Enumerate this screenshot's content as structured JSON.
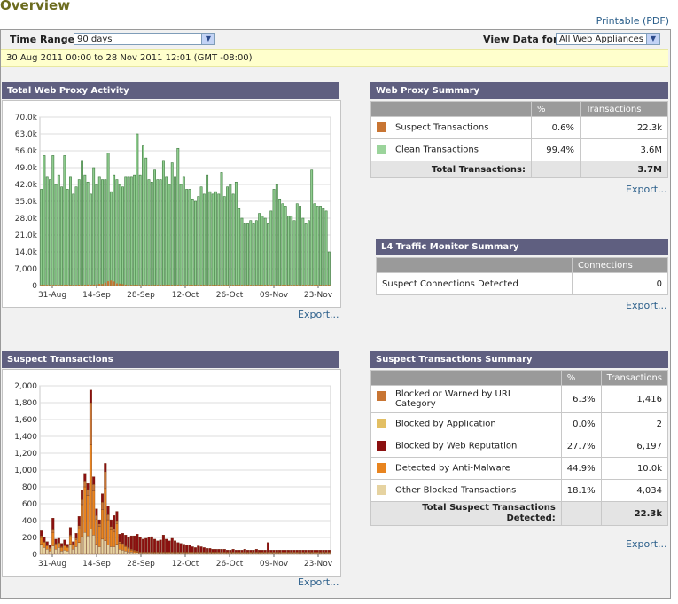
{
  "page": {
    "title": "Overview",
    "printable": "Printable (PDF)",
    "time_range_label": "Time Range:",
    "time_range_value": "90 days",
    "view_data_label": "View Data for:",
    "view_data_value": "All Web Appliances",
    "date_range": "30 Aug 2011 00:00 to 28 Nov 2011 12:01 (GMT -08:00)"
  },
  "panels": {
    "proxy_activity": {
      "title": "Total Web Proxy Activity",
      "export": "Export..."
    },
    "suspect": {
      "title": "Suspect Transactions",
      "export": "Export..."
    },
    "proxy_summary": {
      "title": "Web Proxy Summary",
      "col_pct": "%",
      "col_tx": "Transactions",
      "rows": [
        {
          "label": "Suspect Transactions",
          "pct": "0.6%",
          "tx": "22.3k",
          "color": "#c87533"
        },
        {
          "label": "Clean Transactions",
          "pct": "99.4%",
          "tx": "3.6M",
          "color": "#9bd49b"
        }
      ],
      "total_label": "Total Transactions:",
      "total_value": "3.7M",
      "export": "Export..."
    },
    "l4": {
      "title": "L4 Traffic Monitor Summary",
      "col": "Connections",
      "row_label": "Suspect Connections Detected",
      "row_value": "0",
      "export": "Export..."
    },
    "suspect_summary": {
      "title": "Suspect Transactions Summary",
      "col_pct": "%",
      "col_tx": "Transactions",
      "rows": [
        {
          "label": "Blocked or Warned by URL Category",
          "pct": "6.3%",
          "tx": "1,416",
          "color": "#c87533"
        },
        {
          "label": "Blocked by Application",
          "pct": "0.0%",
          "tx": "2",
          "color": "#e3bf63"
        },
        {
          "label": "Blocked by Web Reputation",
          "pct": "27.7%",
          "tx": "6,197",
          "color": "#8b1010"
        },
        {
          "label": "Detected by Anti-Malware",
          "pct": "44.9%",
          "tx": "10.0k",
          "color": "#e8841f"
        },
        {
          "label": "Other Blocked Transactions",
          "pct": "18.1%",
          "tx": "4,034",
          "color": "#e6d3a1"
        }
      ],
      "total_label": "Total Suspect Transactions Detected:",
      "total_value": "22.3k",
      "export": "Export..."
    }
  },
  "chart_data": [
    {
      "type": "bar",
      "ylim": [
        0,
        70000
      ],
      "yticks": [
        "0",
        "7,000",
        "14.0k",
        "21.0k",
        "28.0k",
        "35.0k",
        "42.0k",
        "49.0k",
        "56.0k",
        "63.0k",
        "70.0k"
      ],
      "xticks": [
        "31-Aug",
        "14-Sep",
        "28-Sep",
        "12-Oct",
        "26-Oct",
        "09-Nov",
        "23-Nov"
      ],
      "values": [
        40000,
        54000,
        45000,
        44000,
        54000,
        42000,
        46000,
        41000,
        54000,
        40000,
        45000,
        38000,
        41000,
        44000,
        52000,
        46000,
        43000,
        38000,
        49000,
        42000,
        45000,
        44000,
        44000,
        55000,
        39000,
        46000,
        44000,
        42000,
        41000,
        45000,
        45000,
        45000,
        46000,
        63000,
        46000,
        58000,
        53000,
        44000,
        43000,
        48000,
        44000,
        44000,
        52000,
        45000,
        42000,
        51000,
        45000,
        57000,
        42000,
        45000,
        40000,
        40000,
        36000,
        35000,
        37000,
        41000,
        38000,
        46000,
        39000,
        38000,
        39000,
        38000,
        47000,
        37000,
        41000,
        42000,
        38000,
        43000,
        32000,
        28000,
        26000,
        26000,
        27000,
        26000,
        27000,
        30000,
        29000,
        28000,
        26000,
        31000,
        40000,
        42000,
        36000,
        34000,
        33000,
        29000,
        29000,
        27000,
        34000,
        33000,
        28000,
        26000,
        27000,
        48000,
        34000,
        33000,
        33000,
        32000,
        31000,
        14000
      ],
      "suspect_values": [
        100,
        150,
        120,
        90,
        200,
        110,
        130,
        90,
        180,
        160,
        220,
        260,
        300,
        350,
        280,
        320,
        400,
        380,
        420,
        500,
        700,
        650,
        1200,
        1800,
        2100,
        1700,
        900,
        800,
        600,
        400,
        300,
        250,
        200,
        180,
        150,
        140,
        130,
        120,
        110,
        100,
        100,
        90,
        80,
        90,
        100,
        80,
        70,
        60,
        60,
        50,
        50,
        40,
        40,
        40,
        30,
        30,
        30,
        30,
        30,
        30,
        20,
        20,
        20,
        20,
        20,
        20,
        20,
        20,
        20,
        20,
        20,
        20,
        20,
        20,
        20,
        20,
        20,
        20,
        20,
        20,
        20,
        20,
        20,
        20,
        20,
        20,
        20,
        20,
        20,
        20,
        20,
        20,
        20,
        20,
        20,
        20,
        20,
        20,
        20,
        20
      ]
    },
    {
      "type": "bar",
      "stacked": true,
      "ylim": [
        0,
        2000
      ],
      "yticks": [
        "0",
        "200",
        "400",
        "600",
        "800",
        "1,000",
        "1,200",
        "1,400",
        "1,600",
        "1,800",
        "2,000"
      ],
      "xticks": [
        "31-Aug",
        "14-Sep",
        "28-Sep",
        "12-Oct",
        "26-Oct",
        "09-Nov",
        "23-Nov"
      ],
      "series": [
        {
          "color": "#e6d3a1",
          "values": [
            120,
            80,
            60,
            40,
            100,
            60,
            80,
            40,
            50,
            40,
            120,
            60,
            90,
            140,
            210,
            260,
            220,
            300,
            230,
            120,
            90,
            180,
            160,
            110,
            90,
            90,
            120,
            60,
            50,
            40,
            30,
            30,
            20,
            20,
            10,
            10,
            10,
            10,
            10,
            10,
            10,
            10,
            10,
            10,
            10,
            10,
            10,
            10,
            10,
            10,
            10,
            10,
            10,
            10,
            10,
            10,
            10,
            10,
            10,
            10,
            10,
            10,
            10,
            10,
            10,
            10,
            10,
            10,
            10,
            10,
            10,
            10,
            10,
            10,
            10,
            10,
            10,
            10,
            10,
            10,
            10,
            10,
            10,
            10,
            10,
            10,
            10,
            10,
            10,
            10,
            10,
            10,
            10,
            10,
            10,
            10,
            10,
            10,
            10,
            10
          ]
        },
        {
          "color": "#e8841f",
          "values": [
            80,
            60,
            40,
            30,
            160,
            60,
            50,
            40,
            50,
            40,
            90,
            50,
            80,
            160,
            380,
            540,
            480,
            1000,
            520,
            300,
            240,
            350,
            620,
            300,
            200,
            180,
            240,
            70,
            60,
            50,
            40,
            20,
            20,
            10,
            10,
            10,
            10,
            10,
            10,
            10,
            10,
            10,
            10,
            10,
            10,
            10,
            10,
            10,
            10,
            10,
            10,
            10,
            10,
            10,
            10,
            10,
            10,
            10,
            10,
            10,
            10,
            10,
            10,
            10,
            10,
            10,
            10,
            10,
            10,
            10,
            10,
            10,
            10,
            10,
            10,
            10,
            10,
            10,
            10,
            10,
            10,
            10,
            10,
            10,
            10,
            10,
            10,
            10,
            10,
            10,
            10,
            10,
            10,
            10,
            10,
            10,
            10,
            10,
            10,
            10
          ]
        },
        {
          "color": "#c87533",
          "values": [
            20,
            10,
            10,
            10,
            30,
            10,
            10,
            10,
            10,
            10,
            20,
            10,
            20,
            40,
            60,
            70,
            70,
            500,
            80,
            40,
            30,
            90,
            200,
            60,
            40,
            30,
            40,
            20,
            20,
            10,
            10,
            10,
            10,
            10,
            10,
            10,
            10,
            10,
            10,
            10,
            10,
            10,
            10,
            10,
            10,
            10,
            10,
            10,
            10,
            10,
            10,
            10,
            10,
            10,
            10,
            10,
            10,
            10,
            10,
            10,
            10,
            10,
            10,
            10,
            10,
            10,
            10,
            10,
            10,
            10,
            10,
            10,
            10,
            10,
            10,
            10,
            10,
            10,
            10,
            10,
            10,
            10,
            10,
            10,
            10,
            10,
            10,
            10,
            10,
            10,
            10,
            10,
            10,
            10,
            10,
            10,
            10,
            10,
            10,
            10
          ]
        },
        {
          "color": "#8b1010",
          "values": [
            60,
            50,
            40,
            30,
            140,
            50,
            50,
            40,
            60,
            30,
            90,
            30,
            60,
            110,
            110,
            90,
            70,
            150,
            90,
            80,
            50,
            100,
            100,
            100,
            80,
            160,
            110,
            90,
            120,
            130,
            120,
            160,
            170,
            200,
            170,
            150,
            160,
            170,
            180,
            150,
            130,
            140,
            200,
            150,
            130,
            160,
            130,
            110,
            100,
            90,
            80,
            80,
            60,
            50,
            70,
            60,
            50,
            40,
            40,
            30,
            30,
            30,
            30,
            30,
            20,
            20,
            30,
            20,
            20,
            20,
            30,
            20,
            20,
            20,
            30,
            20,
            20,
            20,
            110,
            20,
            20,
            20,
            20,
            20,
            20,
            20,
            20,
            20,
            20,
            20,
            20,
            20,
            20,
            20,
            20,
            20,
            20,
            20,
            20,
            20
          ]
        }
      ]
    }
  ]
}
